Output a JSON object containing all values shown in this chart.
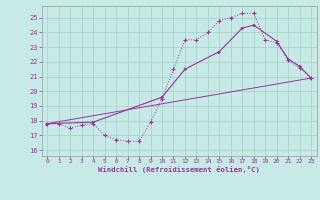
{
  "xlabel": "Windchill (Refroidissement éolien,°C)",
  "bg_color": "#c8eae6",
  "grid_color": "#a8d4cc",
  "line_color": "#993399",
  "xlim": [
    -0.5,
    23.5
  ],
  "ylim": [
    15.6,
    25.8
  ],
  "xticks": [
    0,
    1,
    2,
    3,
    4,
    5,
    6,
    7,
    8,
    9,
    10,
    11,
    12,
    13,
    14,
    15,
    16,
    17,
    18,
    19,
    20,
    21,
    22,
    23
  ],
  "yticks": [
    16,
    17,
    18,
    19,
    20,
    21,
    22,
    23,
    24,
    25
  ],
  "curve1_x": [
    0,
    1,
    2,
    3,
    4,
    5,
    6,
    7,
    8,
    9,
    10,
    11,
    12,
    13,
    14,
    15,
    16,
    17,
    18,
    19,
    20,
    21,
    22,
    23
  ],
  "curve1_y": [
    17.8,
    17.8,
    17.5,
    17.7,
    17.8,
    17.0,
    16.7,
    16.6,
    16.6,
    17.9,
    19.5,
    21.5,
    23.5,
    23.5,
    24.0,
    24.8,
    25.0,
    25.3,
    25.3,
    23.5,
    23.3,
    22.1,
    21.6,
    20.9
  ],
  "curve2_x": [
    0,
    4,
    10,
    12,
    15,
    17,
    18,
    20,
    21,
    22,
    23
  ],
  "curve2_y": [
    17.8,
    17.9,
    19.6,
    21.5,
    22.7,
    24.3,
    24.5,
    23.4,
    22.2,
    21.7,
    20.9
  ],
  "curve3_x": [
    0,
    23
  ],
  "curve3_y": [
    17.8,
    20.9
  ]
}
